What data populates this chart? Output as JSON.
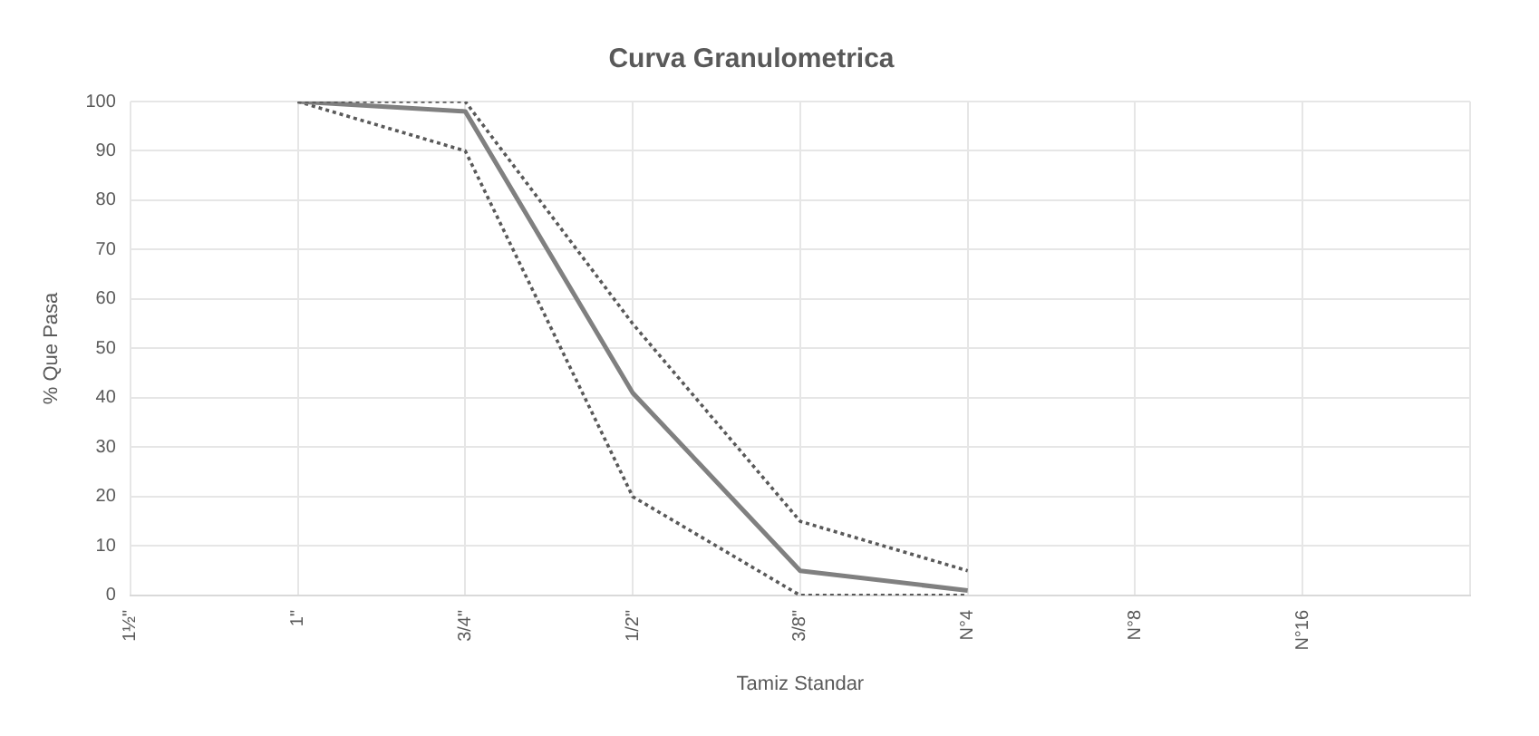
{
  "chart_data": {
    "type": "line",
    "title": "Curva Granulometrica",
    "xlabel": "Tamiz Standar",
    "ylabel": "% Que Pasa",
    "categories": [
      "1½\"",
      "1\"",
      "3/4\"",
      "1/2\"",
      "3/8\"",
      "N°4",
      "N°8",
      "N°16",
      null
    ],
    "series": [
      {
        "color": "#595959",
        "line_style": "dotted",
        "values": [
          null,
          100,
          100,
          55,
          15,
          5,
          null,
          null,
          null
        ]
      },
      {
        "color": "#808080",
        "line_style": "solid",
        "values": [
          null,
          100,
          98,
          41,
          5,
          1,
          null,
          null,
          null
        ]
      },
      {
        "color": "#595959",
        "line_style": "dotted",
        "values": [
          null,
          100,
          90,
          20,
          0,
          0,
          null,
          null,
          null
        ]
      }
    ],
    "ylim": [
      0,
      100
    ],
    "yticks": [
      0,
      10,
      20,
      30,
      40,
      50,
      60,
      70,
      80,
      90,
      100
    ],
    "grid": true,
    "marker": "none",
    "legend": false
  }
}
